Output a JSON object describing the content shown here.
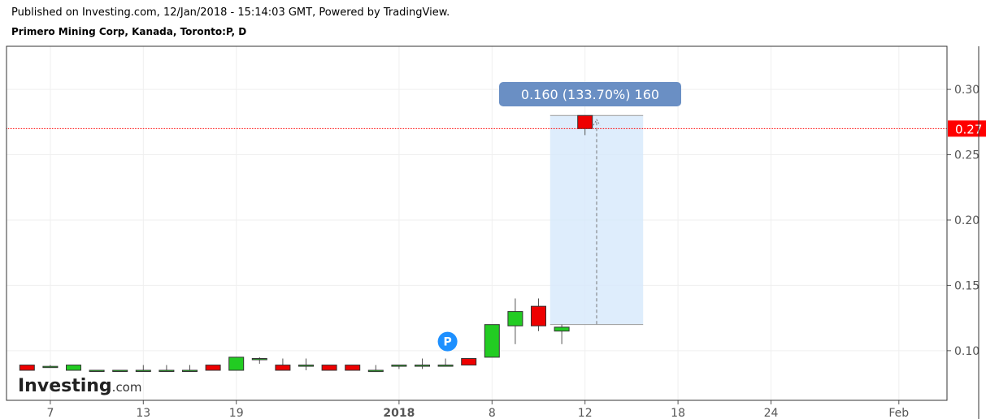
{
  "header": {
    "published": "Published on Investing.com, 12/Jan/2018 - 15:14:03 GMT, Powered by TradingView.",
    "symbol": "Primero Mining Corp, Kanada, Toronto:P, D"
  },
  "logo": {
    "word": "Investing",
    "suffix": ".com"
  },
  "colors": {
    "up": "#22cc22",
    "down": "#ee0000",
    "range_fill": "#d6e8fb",
    "badge": "#6a8fc4",
    "current_line": "#ff0000",
    "marker": "#1e90ff"
  },
  "chart_data": {
    "type": "candlestick",
    "y_ticks": [
      "0.30",
      "0.25",
      "0.20",
      "0.15",
      "0.10"
    ],
    "ylim": [
      0.062,
      0.333
    ],
    "x_ticks": [
      {
        "label": "7",
        "index": 1
      },
      {
        "label": "13",
        "index": 5
      },
      {
        "label": "19",
        "index": 9
      },
      {
        "label": "2018",
        "index": 16,
        "bold": true
      },
      {
        "label": "8",
        "index": 20
      },
      {
        "label": "12",
        "index": 24
      },
      {
        "label": "18",
        "index": 28
      },
      {
        "label": "24",
        "index": 32
      },
      {
        "label": "Feb",
        "index": 37.5
      }
    ],
    "candles": [
      {
        "o": 0.089,
        "h": 0.089,
        "l": 0.085,
        "c": 0.085
      },
      {
        "o": 0.088,
        "h": 0.089,
        "l": 0.087,
        "c": 0.088
      },
      {
        "o": 0.085,
        "h": 0.089,
        "l": 0.085,
        "c": 0.089
      },
      {
        "o": 0.085,
        "h": 0.085,
        "l": 0.085,
        "c": 0.085
      },
      {
        "o": 0.085,
        "h": 0.085,
        "l": 0.085,
        "c": 0.085
      },
      {
        "o": 0.085,
        "h": 0.089,
        "l": 0.085,
        "c": 0.085
      },
      {
        "o": 0.085,
        "h": 0.089,
        "l": 0.085,
        "c": 0.085
      },
      {
        "o": 0.085,
        "h": 0.089,
        "l": 0.085,
        "c": 0.085
      },
      {
        "o": 0.089,
        "h": 0.089,
        "l": 0.085,
        "c": 0.085
      },
      {
        "o": 0.085,
        "h": 0.095,
        "l": 0.085,
        "c": 0.095
      },
      {
        "o": 0.094,
        "h": 0.095,
        "l": 0.09,
        "c": 0.094
      },
      {
        "o": 0.089,
        "h": 0.094,
        "l": 0.085,
        "c": 0.085
      },
      {
        "o": 0.089,
        "h": 0.094,
        "l": 0.085,
        "c": 0.089
      },
      {
        "o": 0.089,
        "h": 0.089,
        "l": 0.085,
        "c": 0.085
      },
      {
        "o": 0.089,
        "h": 0.089,
        "l": 0.085,
        "c": 0.085
      },
      {
        "o": 0.084,
        "h": 0.089,
        "l": 0.084,
        "c": 0.085
      },
      {
        "o": 0.089,
        "h": 0.089,
        "l": 0.086,
        "c": 0.089
      },
      {
        "o": 0.089,
        "h": 0.094,
        "l": 0.086,
        "c": 0.089
      },
      {
        "o": 0.089,
        "h": 0.094,
        "l": 0.089,
        "c": 0.089
      },
      {
        "o": 0.094,
        "h": 0.094,
        "l": 0.089,
        "c": 0.089
      },
      {
        "o": 0.095,
        "h": 0.12,
        "l": 0.095,
        "c": 0.12
      },
      {
        "o": 0.119,
        "h": 0.14,
        "l": 0.105,
        "c": 0.13
      },
      {
        "o": 0.134,
        "h": 0.14,
        "l": 0.115,
        "c": 0.119
      },
      {
        "o": 0.115,
        "h": 0.12,
        "l": 0.105,
        "c": 0.118
      },
      {
        "o": 0.28,
        "h": 0.28,
        "l": 0.265,
        "c": 0.27
      }
    ],
    "current_price": 0.27,
    "current_price_label": "0.27",
    "measure": {
      "from_index": 22.5,
      "to_index": 26.5,
      "low": 0.12,
      "high": 0.28,
      "label": "0.160 (133.70%) 160"
    },
    "marker": {
      "label": "P",
      "index": 18,
      "price": 0.107
    },
    "grid": true
  }
}
